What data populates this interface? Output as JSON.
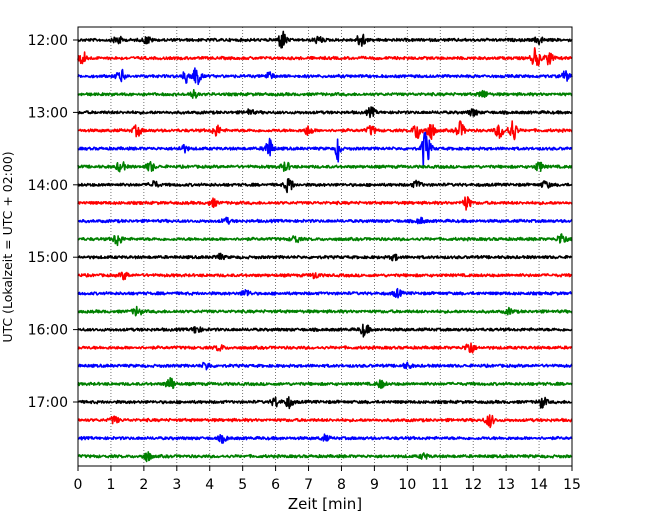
{
  "chart_data": {
    "type": "line",
    "subtype": "helicorder-seismogram",
    "title": "",
    "xlabel": "Zeit  [min]",
    "ylabel": "UTC (Lokalzeit = UTC + 02:00)",
    "xlim": [
      0,
      15
    ],
    "x_ticks": [
      0,
      1,
      2,
      3,
      4,
      5,
      6,
      7,
      8,
      9,
      10,
      11,
      12,
      13,
      14,
      15
    ],
    "x_tick_labels": [
      "0",
      "1",
      "2",
      "3",
      "4",
      "5",
      "6",
      "7",
      "8",
      "9",
      "10",
      "11",
      "12",
      "13",
      "14",
      "15"
    ],
    "y_tick_labels": [
      "12:00",
      "13:00",
      "14:00",
      "15:00",
      "16:00",
      "17:00"
    ],
    "grid": "vertical dotted lines at each minute",
    "trace_interval_min": 15,
    "color_cycle": [
      "#000000",
      "#ff0000",
      "#0000ff",
      "#008000"
    ],
    "traces": [
      {
        "start": "12:00",
        "color": "#000000",
        "events": [
          {
            "t": 1.2,
            "amp": 0.5
          },
          {
            "t": 2.1,
            "amp": 0.4
          },
          {
            "t": 6.2,
            "amp": 1.0
          },
          {
            "t": 7.3,
            "amp": 0.4
          },
          {
            "t": 8.6,
            "amp": 0.85
          },
          {
            "t": 14.0,
            "amp": 0.4
          }
        ]
      },
      {
        "start": "12:15",
        "color": "#ff0000",
        "events": [
          {
            "t": 0.15,
            "amp": 0.7
          },
          {
            "t": 13.9,
            "amp": 1.1
          },
          {
            "t": 14.3,
            "amp": 0.7
          }
        ]
      },
      {
        "start": "12:30",
        "color": "#0000ff",
        "events": [
          {
            "t": 1.3,
            "amp": 0.7
          },
          {
            "t": 3.3,
            "amp": 0.7
          },
          {
            "t": 3.6,
            "amp": 1.0
          },
          {
            "t": 5.8,
            "amp": 0.4
          },
          {
            "t": 14.8,
            "amp": 0.5
          }
        ]
      },
      {
        "start": "12:45",
        "color": "#008000",
        "events": [
          {
            "t": 3.5,
            "amp": 0.4
          },
          {
            "t": 12.3,
            "amp": 0.4
          }
        ]
      },
      {
        "start": "13:00",
        "color": "#000000",
        "events": [
          {
            "t": 5.2,
            "amp": 0.3
          },
          {
            "t": 8.9,
            "amp": 0.5
          },
          {
            "t": 12.0,
            "amp": 0.4
          }
        ]
      },
      {
        "start": "13:15",
        "color": "#ff0000",
        "events": [
          {
            "t": 1.8,
            "amp": 0.6
          },
          {
            "t": 4.2,
            "amp": 0.6
          },
          {
            "t": 7.0,
            "amp": 0.5
          },
          {
            "t": 8.9,
            "amp": 0.5
          },
          {
            "t": 10.3,
            "amp": 0.9
          },
          {
            "t": 10.7,
            "amp": 1.0
          },
          {
            "t": 11.6,
            "amp": 0.9
          },
          {
            "t": 12.8,
            "amp": 0.8
          },
          {
            "t": 13.2,
            "amp": 1.2
          }
        ]
      },
      {
        "start": "13:30",
        "color": "#0000ff",
        "events": [
          {
            "t": 3.2,
            "amp": 0.4
          },
          {
            "t": 5.8,
            "amp": 1.1
          },
          {
            "t": 7.9,
            "amp": 2.0
          },
          {
            "t": 10.5,
            "amp": 1.8
          },
          {
            "t": 10.6,
            "amp": 1.2
          }
        ]
      },
      {
        "start": "13:45",
        "color": "#008000",
        "events": [
          {
            "t": 1.3,
            "amp": 0.6
          },
          {
            "t": 2.2,
            "amp": 0.5
          },
          {
            "t": 6.3,
            "amp": 0.5
          },
          {
            "t": 14.0,
            "amp": 0.5
          }
        ]
      },
      {
        "start": "14:00",
        "color": "#000000",
        "events": [
          {
            "t": 2.3,
            "amp": 0.4
          },
          {
            "t": 6.4,
            "amp": 0.8
          },
          {
            "t": 10.3,
            "amp": 0.4
          },
          {
            "t": 14.2,
            "amp": 0.4
          }
        ]
      },
      {
        "start": "14:15",
        "color": "#ff0000",
        "events": [
          {
            "t": 4.1,
            "amp": 0.4
          },
          {
            "t": 11.8,
            "amp": 0.7
          }
        ]
      },
      {
        "start": "14:30",
        "color": "#0000ff",
        "events": [
          {
            "t": 4.5,
            "amp": 0.3
          },
          {
            "t": 10.4,
            "amp": 0.3
          }
        ]
      },
      {
        "start": "14:45",
        "color": "#008000",
        "events": [
          {
            "t": 1.2,
            "amp": 0.7
          },
          {
            "t": 6.6,
            "amp": 0.4
          },
          {
            "t": 14.7,
            "amp": 0.7
          }
        ]
      },
      {
        "start": "15:00",
        "color": "#000000",
        "events": [
          {
            "t": 4.3,
            "amp": 0.3
          },
          {
            "t": 9.6,
            "amp": 0.3
          }
        ]
      },
      {
        "start": "15:15",
        "color": "#ff0000",
        "events": [
          {
            "t": 1.4,
            "amp": 0.4
          },
          {
            "t": 7.2,
            "amp": 0.3
          }
        ]
      },
      {
        "start": "15:30",
        "color": "#0000ff",
        "events": [
          {
            "t": 5.1,
            "amp": 0.4
          },
          {
            "t": 9.7,
            "amp": 0.4
          }
        ]
      },
      {
        "start": "15:45",
        "color": "#008000",
        "events": [
          {
            "t": 1.8,
            "amp": 0.5
          },
          {
            "t": 13.1,
            "amp": 0.3
          }
        ]
      },
      {
        "start": "16:00",
        "color": "#000000",
        "events": [
          {
            "t": 3.6,
            "amp": 0.4
          },
          {
            "t": 8.7,
            "amp": 0.7
          }
        ]
      },
      {
        "start": "16:15",
        "color": "#ff0000",
        "events": [
          {
            "t": 4.3,
            "amp": 0.3
          },
          {
            "t": 11.9,
            "amp": 0.8
          }
        ]
      },
      {
        "start": "16:30",
        "color": "#0000ff",
        "events": [
          {
            "t": 3.9,
            "amp": 0.4
          },
          {
            "t": 10.0,
            "amp": 0.3
          }
        ]
      },
      {
        "start": "16:45",
        "color": "#008000",
        "events": [
          {
            "t": 2.8,
            "amp": 0.7
          },
          {
            "t": 9.2,
            "amp": 0.4
          }
        ]
      },
      {
        "start": "17:00",
        "color": "#000000",
        "events": [
          {
            "t": 6.0,
            "amp": 0.5
          },
          {
            "t": 6.4,
            "amp": 0.6
          },
          {
            "t": 14.1,
            "amp": 0.6
          }
        ]
      },
      {
        "start": "17:15",
        "color": "#ff0000",
        "events": [
          {
            "t": 1.1,
            "amp": 0.4
          },
          {
            "t": 12.5,
            "amp": 0.7
          }
        ]
      },
      {
        "start": "17:30",
        "color": "#0000ff",
        "events": [
          {
            "t": 4.4,
            "amp": 0.4
          },
          {
            "t": 7.5,
            "amp": 0.3
          }
        ]
      },
      {
        "start": "17:45",
        "color": "#008000",
        "events": [
          {
            "t": 2.1,
            "amp": 0.5
          },
          {
            "t": 10.5,
            "amp": 0.3
          }
        ]
      }
    ]
  }
}
